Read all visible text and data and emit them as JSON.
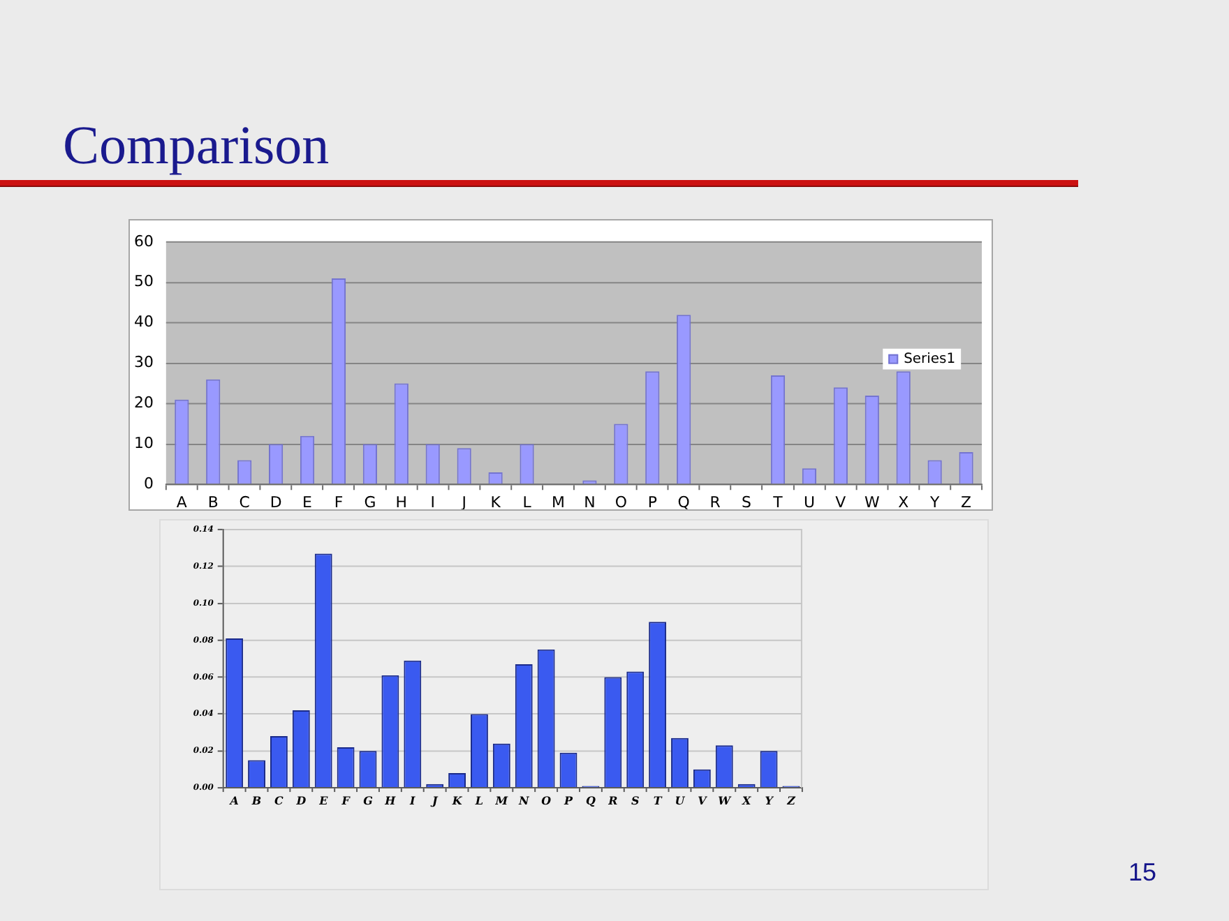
{
  "chart_data": [
    {
      "type": "bar",
      "title": "Comparison",
      "categories": [
        "A",
        "B",
        "C",
        "D",
        "E",
        "F",
        "G",
        "H",
        "I",
        "J",
        "K",
        "L",
        "M",
        "N",
        "O",
        "P",
        "Q",
        "R",
        "S",
        "T",
        "U",
        "V",
        "W",
        "X",
        "Y",
        "Z"
      ],
      "series": [
        {
          "name": "Series1",
          "color": "#9999ff",
          "values": [
            21,
            26,
            6,
            10,
            12,
            51,
            10,
            25,
            10,
            9,
            3,
            10,
            0,
            1,
            15,
            28,
            42,
            0,
            0,
            27,
            4,
            24,
            22,
            28,
            6,
            8
          ]
        }
      ],
      "ylim": [
        0,
        60
      ],
      "yticks": [
        0,
        10,
        20,
        30,
        40,
        50,
        60
      ],
      "grid": "y",
      "legend": "right"
    },
    {
      "type": "bar",
      "categories": [
        "A",
        "B",
        "C",
        "D",
        "E",
        "F",
        "G",
        "H",
        "I",
        "J",
        "K",
        "L",
        "M",
        "N",
        "O",
        "P",
        "Q",
        "R",
        "S",
        "T",
        "U",
        "V",
        "W",
        "X",
        "Y",
        "Z"
      ],
      "values": [
        0.081,
        0.015,
        0.028,
        0.042,
        0.127,
        0.022,
        0.02,
        0.061,
        0.069,
        0.002,
        0.008,
        0.04,
        0.024,
        0.067,
        0.075,
        0.019,
        0.001,
        0.06,
        0.063,
        0.09,
        0.027,
        0.01,
        0.023,
        0.002,
        0.02,
        0.001
      ],
      "color": "#3a5af0",
      "ylim": [
        0,
        0.14
      ],
      "yticks": [
        {
          "value": 0,
          "label": "0.00"
        },
        0.02,
        0.04,
        0.06,
        0.08,
        {
          "value": 0.1,
          "label": "0.10"
        },
        0.12,
        0.14
      ],
      "grid": "y",
      "annotations": [
        "15"
      ]
    }
  ]
}
